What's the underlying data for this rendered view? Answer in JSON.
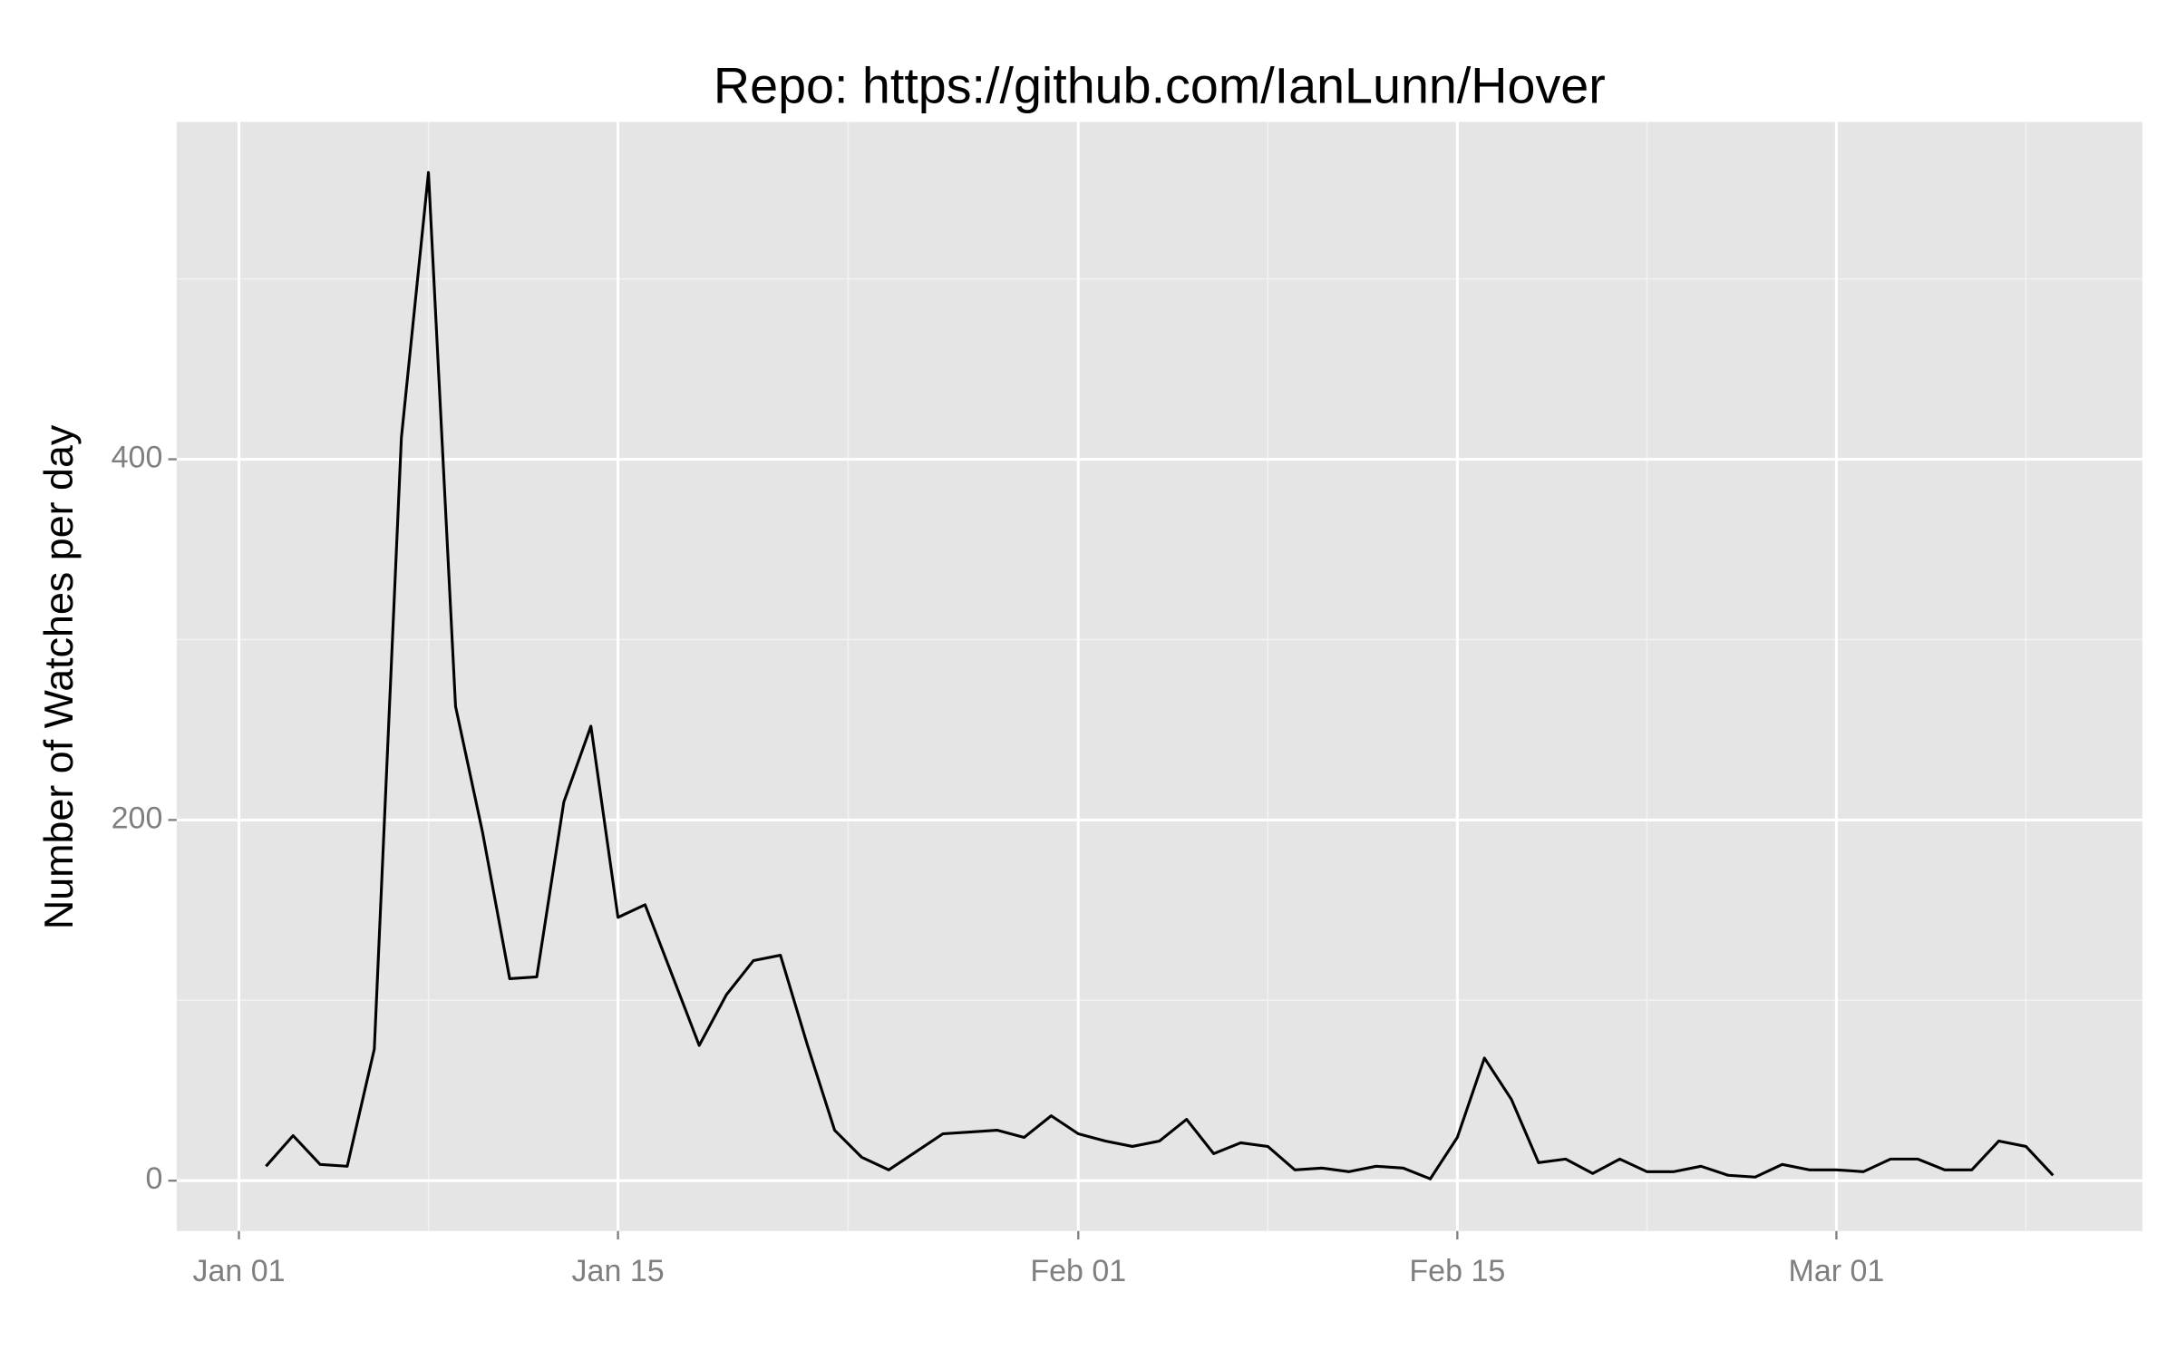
{
  "chart_data": {
    "type": "line",
    "title": "Repo: https://github.com/IanLunn/Hover",
    "y_label": "Number of Watches per day",
    "x": [
      "Jan 02",
      "Jan 03",
      "Jan 04",
      "Jan 05",
      "Jan 06",
      "Jan 07",
      "Jan 08",
      "Jan 09",
      "Jan 10",
      "Jan 11",
      "Jan 12",
      "Jan 13",
      "Jan 14",
      "Jan 15",
      "Jan 16",
      "Jan 17",
      "Jan 18",
      "Jan 19",
      "Jan 20",
      "Jan 21",
      "Jan 22",
      "Jan 23",
      "Jan 24",
      "Jan 25",
      "Jan 26",
      "Jan 27",
      "Jan 28",
      "Jan 29",
      "Jan 30",
      "Jan 31",
      "Feb 01",
      "Feb 02",
      "Feb 03",
      "Feb 04",
      "Feb 05",
      "Feb 06",
      "Feb 07",
      "Feb 08",
      "Feb 09",
      "Feb 10",
      "Feb 11",
      "Feb 12",
      "Feb 13",
      "Feb 14",
      "Feb 15",
      "Feb 16",
      "Feb 17",
      "Feb 18",
      "Feb 19",
      "Feb 20",
      "Feb 21",
      "Feb 22",
      "Feb 23",
      "Feb 24",
      "Feb 25",
      "Feb 26",
      "Feb 27",
      "Feb 28",
      "Mar 01",
      "Mar 02",
      "Mar 03",
      "Mar 04",
      "Mar 05",
      "Mar 06",
      "Mar 07",
      "Mar 08",
      "Mar 09"
    ],
    "values": [
      8,
      25,
      9,
      8,
      73,
      412,
      559,
      263,
      193,
      112,
      113,
      210,
      252,
      146,
      153,
      114,
      75,
      103,
      122,
      125,
      75,
      28,
      13,
      6,
      16,
      26,
      27,
      28,
      24,
      36,
      26,
      22,
      19,
      22,
      34,
      15,
      21,
      19,
      6,
      7,
      5,
      8,
      7,
      1,
      24,
      68,
      45,
      10,
      12,
      4,
      12,
      5,
      5,
      8,
      3,
      2,
      9,
      6,
      6,
      5,
      12,
      12,
      6,
      6,
      22,
      19,
      3
    ],
    "color": "#000000",
    "ylim": [
      -27.9,
      587
    ],
    "yticks": [
      0,
      200,
      400
    ],
    "xticks": [
      "Jan 01",
      "Jan 15",
      "Feb 01",
      "Feb 15",
      "Mar 01"
    ],
    "grid": true
  }
}
